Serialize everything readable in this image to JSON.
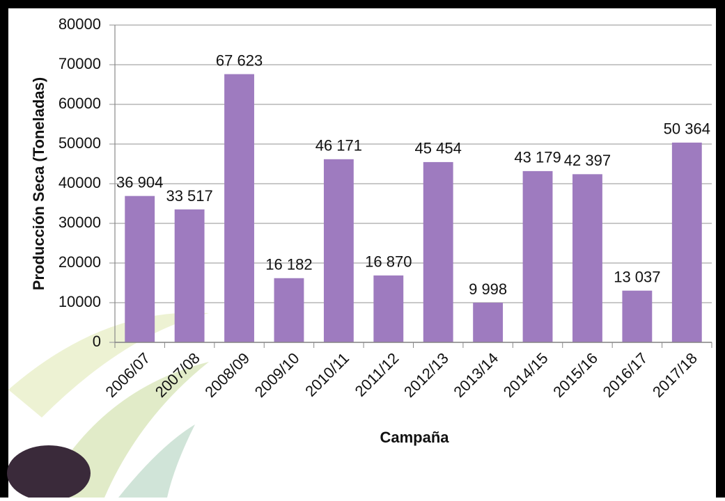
{
  "chart_data": {
    "type": "bar",
    "x_label": "Campaña",
    "y_label": "Producción Seca (Toneladas)",
    "categories": [
      "2006/07",
      "2007/08",
      "2008/09",
      "2009/10",
      "2010/11",
      "2011/12",
      "2012/13",
      "2013/14",
      "2014/15",
      "2015/16",
      "2016/17",
      "2017/18"
    ],
    "values": [
      36904,
      33517,
      67623,
      16182,
      46171,
      16870,
      45454,
      9998,
      43179,
      42397,
      13037,
      50364
    ],
    "value_labels": [
      "36 904",
      "33 517",
      "67 623",
      "16 182",
      "46 171",
      "16 870",
      "45 454",
      "9 998",
      "43 179",
      "42 397",
      "13 037",
      "50 364"
    ],
    "color": "#9e7bbf",
    "ylim": [
      0,
      80000
    ],
    "yticks": [
      0,
      10000,
      20000,
      30000,
      40000,
      50000,
      60000,
      70000,
      80000
    ],
    "grid": true
  }
}
